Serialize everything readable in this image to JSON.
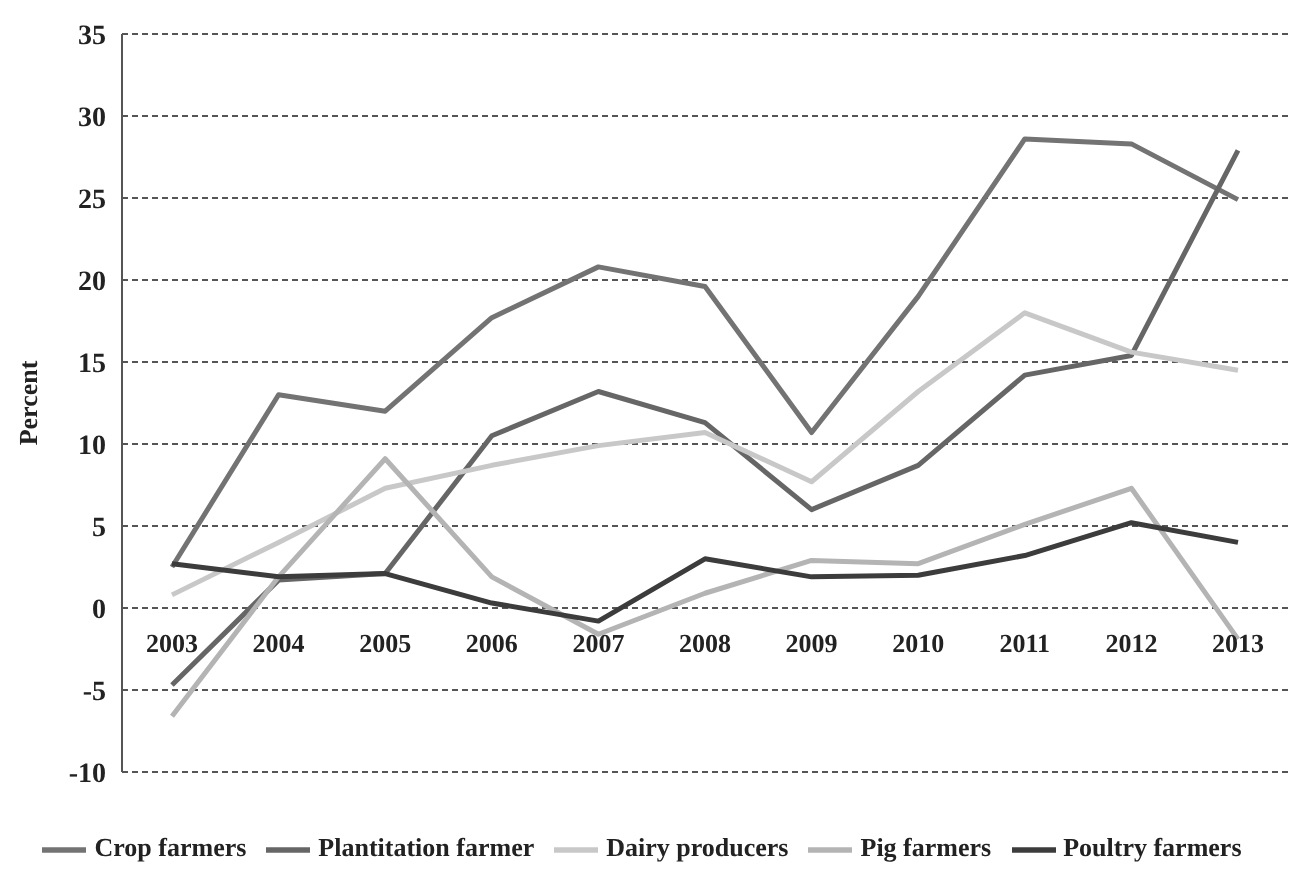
{
  "chart_data": {
    "type": "line",
    "ylabel": "Percent",
    "categories": [
      "2003",
      "2004",
      "2005",
      "2006",
      "2007",
      "2008",
      "2009",
      "2010",
      "2011",
      "2012",
      "2013"
    ],
    "series": [
      {
        "name": "Crop farmers",
        "color": "#737373",
        "values": [
          2.5,
          13.0,
          12.0,
          17.7,
          20.8,
          19.6,
          10.7,
          19.0,
          28.6,
          28.3,
          24.9
        ]
      },
      {
        "name": "Plantitation farmer",
        "color": "#666666",
        "values": [
          -4.7,
          1.7,
          2.1,
          10.5,
          13.2,
          11.3,
          6.0,
          8.7,
          14.2,
          15.4,
          27.9
        ]
      },
      {
        "name": "Dairy producers",
        "color": "#c8c8c8",
        "values": [
          0.8,
          4.0,
          7.3,
          8.7,
          9.9,
          10.7,
          7.7,
          13.2,
          18.0,
          15.6,
          14.5
        ]
      },
      {
        "name": "Pig farmers",
        "color": "#b4b4b4",
        "values": [
          -6.6,
          1.9,
          9.1,
          1.9,
          -1.6,
          0.9,
          2.9,
          2.7,
          5.1,
          7.3,
          -1.9
        ]
      },
      {
        "name": "Poultry farmers",
        "color": "#3c3c3c",
        "values": [
          2.7,
          1.9,
          2.1,
          0.3,
          -0.8,
          3.0,
          1.9,
          2.0,
          3.2,
          5.2,
          4.0
        ]
      }
    ],
    "ylim": [
      -10,
      35
    ],
    "yticks": [
      -10,
      -5,
      0,
      5,
      10,
      15,
      20,
      25,
      30,
      35
    ],
    "grid": "y",
    "legend": "bottom",
    "marker": "none",
    "line_style": "solid"
  }
}
